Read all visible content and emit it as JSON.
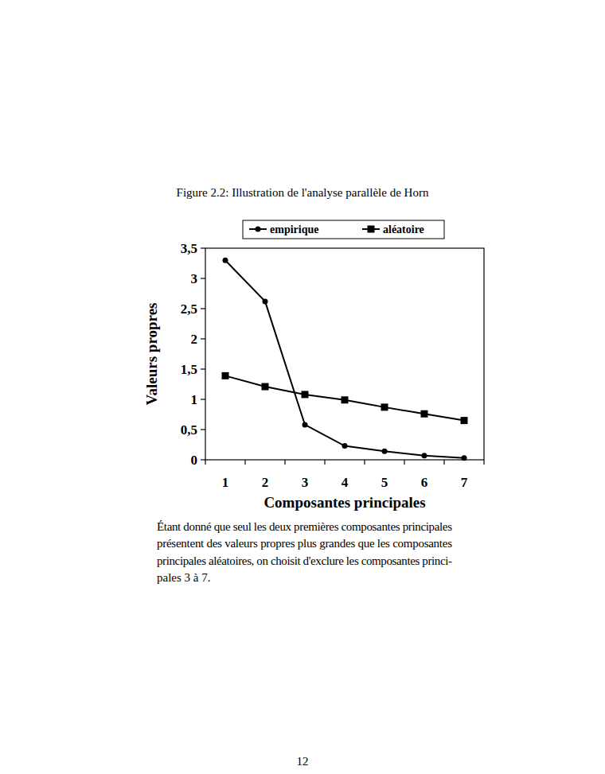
{
  "chart_data": {
    "type": "line",
    "title": "Figure 2.2: Illustration de l'analyse parallèle de Horn",
    "x_label": "Composantes principales",
    "y_label": "Valeurs propres",
    "categories": [
      "1",
      "2",
      "3",
      "4",
      "5",
      "6",
      "7"
    ],
    "series": [
      {
        "name": "empirique",
        "color": "#000000",
        "marker": "circle",
        "line_style": "solid",
        "values": [
          3.3,
          2.62,
          0.58,
          0.23,
          0.14,
          0.07,
          0.03
        ]
      },
      {
        "name": "aléatoire",
        "color": "#000000",
        "marker": "square",
        "line_style": "solid",
        "values": [
          1.39,
          1.21,
          1.08,
          0.99,
          0.87,
          0.76,
          0.65
        ]
      }
    ],
    "ylim": [
      0,
      3.5
    ],
    "yticks": [
      0,
      {
        "value": 0.5,
        "label": "0,5"
      },
      1,
      {
        "value": 1.5,
        "label": "1,5"
      },
      2,
      {
        "value": 2.5,
        "label": "2,5"
      },
      3,
      {
        "value": 3.5,
        "label": "3,5"
      }
    ],
    "grid": false,
    "legend": "top"
  },
  "document": {
    "lines": [
      "Étant donné que seul les deux premières composantes principales",
      "présentent des valeurs propres plus grandes que les composantes",
      "principales aléatoires, on choisit d'exclure les composantes princi-",
      "pales 3 à 7."
    ],
    "page_number": "12"
  }
}
